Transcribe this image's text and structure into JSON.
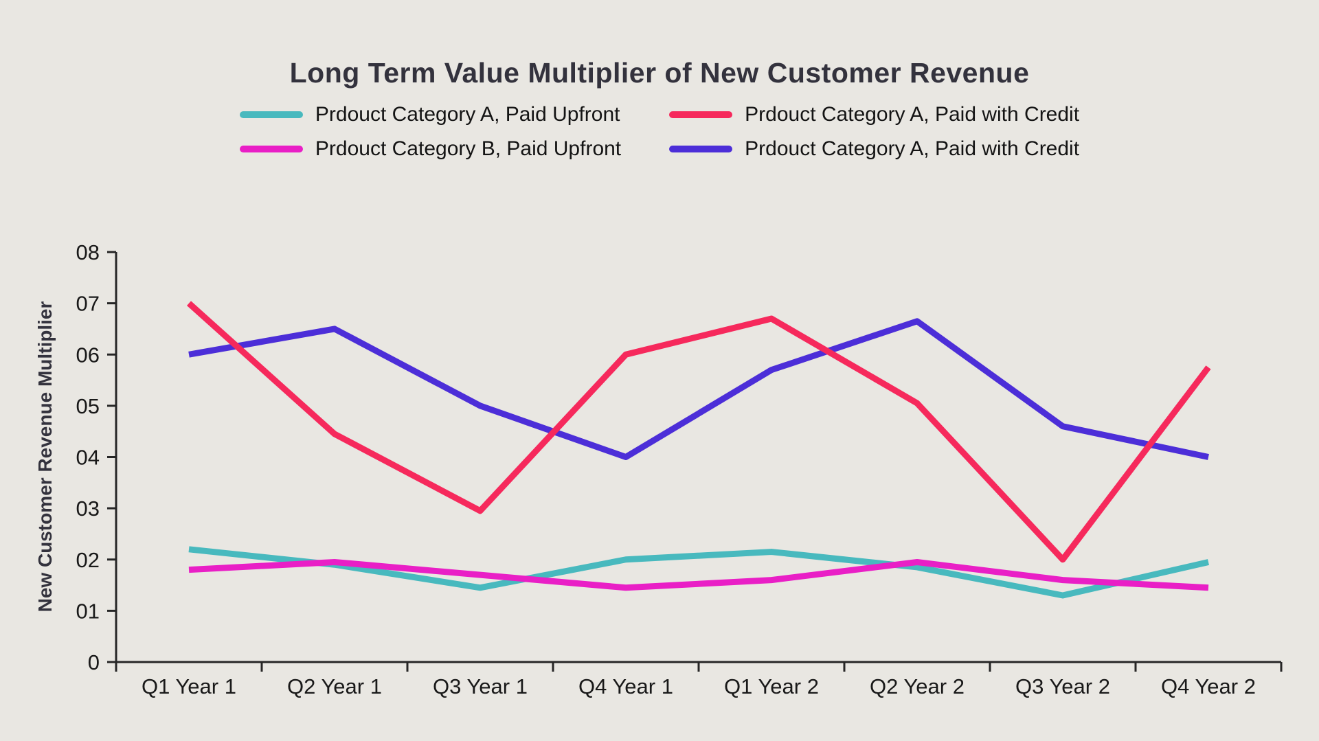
{
  "chart_data": {
    "type": "line",
    "title": "Long Term Value Multiplier of New Customer Revenue",
    "ylabel": "New Customer Revenue Multiplier",
    "xlabel": "",
    "ylim": [
      0,
      8
    ],
    "ytick_labels": [
      "0",
      "01",
      "02",
      "03",
      "04",
      "05",
      "06",
      "07",
      "08"
    ],
    "grid": false,
    "legend_position": "top",
    "background_color": "#E9E7E2",
    "title_color": "#33323D",
    "axis_color": "#262626",
    "tick_label_color": "#191919",
    "categories": [
      "Q1 Year 1",
      "Q2 Year 1",
      "Q3 Year 1",
      "Q4 Year 1",
      "Q1 Year 2",
      "Q2 Year 2",
      "Q3 Year 2",
      "Q4 Year 2"
    ],
    "series": [
      {
        "name": "Prdouct Category A, Paid Upfront",
        "color": "#48B9BE",
        "values": [
          2.2,
          1.9,
          1.45,
          2.0,
          2.15,
          1.85,
          1.3,
          1.95
        ]
      },
      {
        "name": "Prdouct Category A, Paid with Credit",
        "color": "#F6295C",
        "values": [
          7.0,
          4.45,
          2.95,
          6.0,
          6.7,
          5.05,
          2.0,
          5.75
        ]
      },
      {
        "name": "Prdouct Category B, Paid Upfront",
        "color": "#E91FC6",
        "values": [
          1.8,
          1.95,
          1.7,
          1.45,
          1.6,
          1.95,
          1.6,
          1.45
        ]
      },
      {
        "name": "Prdouct Category A, Paid with Credit",
        "color": "#4C2ED8",
        "values": [
          6.0,
          6.5,
          5.0,
          4.0,
          5.7,
          6.65,
          4.6,
          4.0
        ]
      }
    ],
    "draw_order": [
      0,
      2,
      3,
      1
    ]
  }
}
